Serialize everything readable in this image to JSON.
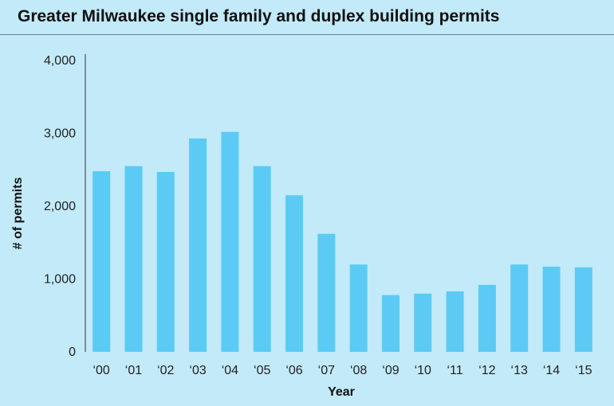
{
  "title": "Greater Milwaukee single family and duplex building permits",
  "chart_data": {
    "type": "bar",
    "title": "Greater Milwaukee single family and duplex building permits",
    "xlabel": "Year",
    "ylabel": "# of permits",
    "categories": [
      "‘00",
      "‘01",
      "‘02",
      "‘03",
      "‘04",
      "‘05",
      "‘06",
      "‘07",
      "‘08",
      "‘09",
      "‘10",
      "‘11",
      "‘12",
      "‘13",
      "‘14",
      "‘15"
    ],
    "values": [
      2480,
      2550,
      2470,
      2930,
      3020,
      2550,
      2150,
      1620,
      1200,
      780,
      800,
      830,
      920,
      1200,
      1170,
      1160
    ],
    "ylim": [
      0,
      4000
    ],
    "yticks": [
      0,
      1000,
      2000,
      3000,
      4000
    ],
    "ytick_labels": [
      "0",
      "1,000",
      "2,000",
      "3,000",
      "4,000"
    ],
    "grid": false,
    "bar_color": "#5bcbf5",
    "background": "#c2eaf9"
  }
}
